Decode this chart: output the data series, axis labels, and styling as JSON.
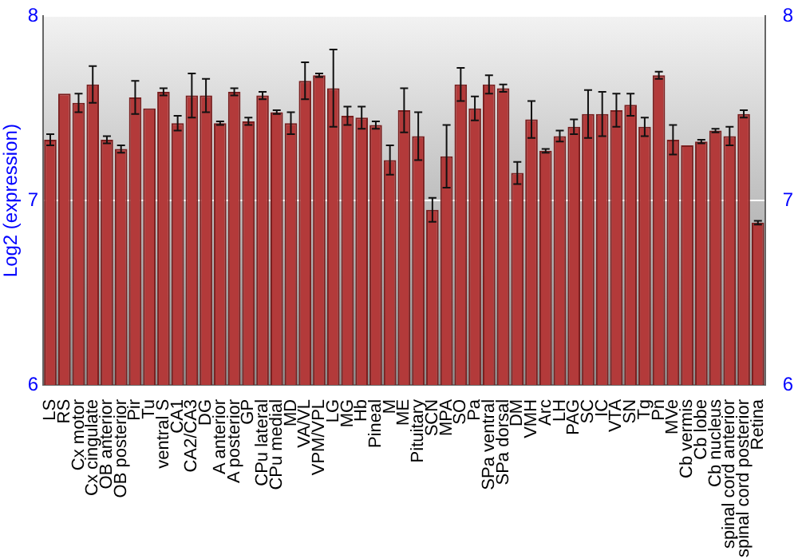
{
  "chart_data": {
    "type": "bar",
    "ylabel": "Log2 (expression)",
    "categories": [
      "LS",
      "RS",
      "Cx motor",
      "Cx cingulate",
      "OB anterior",
      "OB posterior",
      "Pir",
      "Tu",
      "ventral S",
      "CA1",
      "CA2/CA3",
      "DG",
      "A anterior",
      "A posterior",
      "GP",
      "CPu lateral",
      "CPu medial",
      "MD",
      "VA/VL",
      "VPM/VPL",
      "LG",
      "MG",
      "Hb",
      "Pineal",
      "M",
      "ME",
      "Pituitary",
      "SCN",
      "MPA",
      "SO",
      "Pa",
      "SPa ventral",
      "SPa dorsal",
      "DM",
      "VMH",
      "Arc",
      "LH",
      "PAG",
      "SC",
      "IC",
      "VTA",
      "SN",
      "Tg",
      "Pn",
      "MVe",
      "Cb vermis",
      "Cb lobe",
      "Cb nucleus",
      "spinal cord anterior",
      "spinal cord posterior",
      "Retina"
    ],
    "values": [
      7.33,
      7.58,
      7.53,
      7.63,
      7.33,
      7.28,
      7.56,
      7.5,
      7.59,
      7.42,
      7.57,
      7.57,
      7.42,
      7.59,
      7.43,
      7.57,
      7.48,
      7.42,
      7.65,
      7.68,
      7.61,
      7.46,
      7.45,
      7.41,
      7.22,
      7.49,
      7.35,
      6.95,
      7.24,
      7.63,
      7.5,
      7.63,
      7.61,
      7.15,
      7.44,
      7.27,
      7.35,
      7.4,
      7.47,
      7.47,
      7.49,
      7.52,
      7.4,
      7.68,
      7.33,
      7.3,
      7.32,
      7.38,
      7.35,
      7.47,
      6.88
    ],
    "errors": [
      0.03,
      null,
      0.05,
      0.1,
      0.02,
      0.02,
      0.09,
      null,
      0.02,
      0.04,
      0.12,
      0.09,
      0.01,
      0.02,
      0.02,
      0.02,
      0.01,
      0.06,
      0.1,
      0.01,
      0.21,
      0.05,
      0.06,
      0.02,
      0.08,
      0.12,
      0.13,
      0.065,
      0.17,
      0.09,
      0.065,
      0.05,
      0.02,
      0.06,
      0.1,
      0.01,
      0.03,
      0.04,
      0.13,
      0.12,
      0.09,
      0.06,
      0.05,
      0.02,
      0.08,
      null,
      0.01,
      0.01,
      0.05,
      0.02,
      0.01
    ],
    "color": "#b33a3a",
    "ylim": [
      6,
      8
    ],
    "yticks": [
      6,
      7,
      8
    ],
    "y2lim": [
      6,
      8
    ],
    "y2ticks": [
      6,
      7,
      8
    ],
    "grid": "y",
    "legend": false
  }
}
